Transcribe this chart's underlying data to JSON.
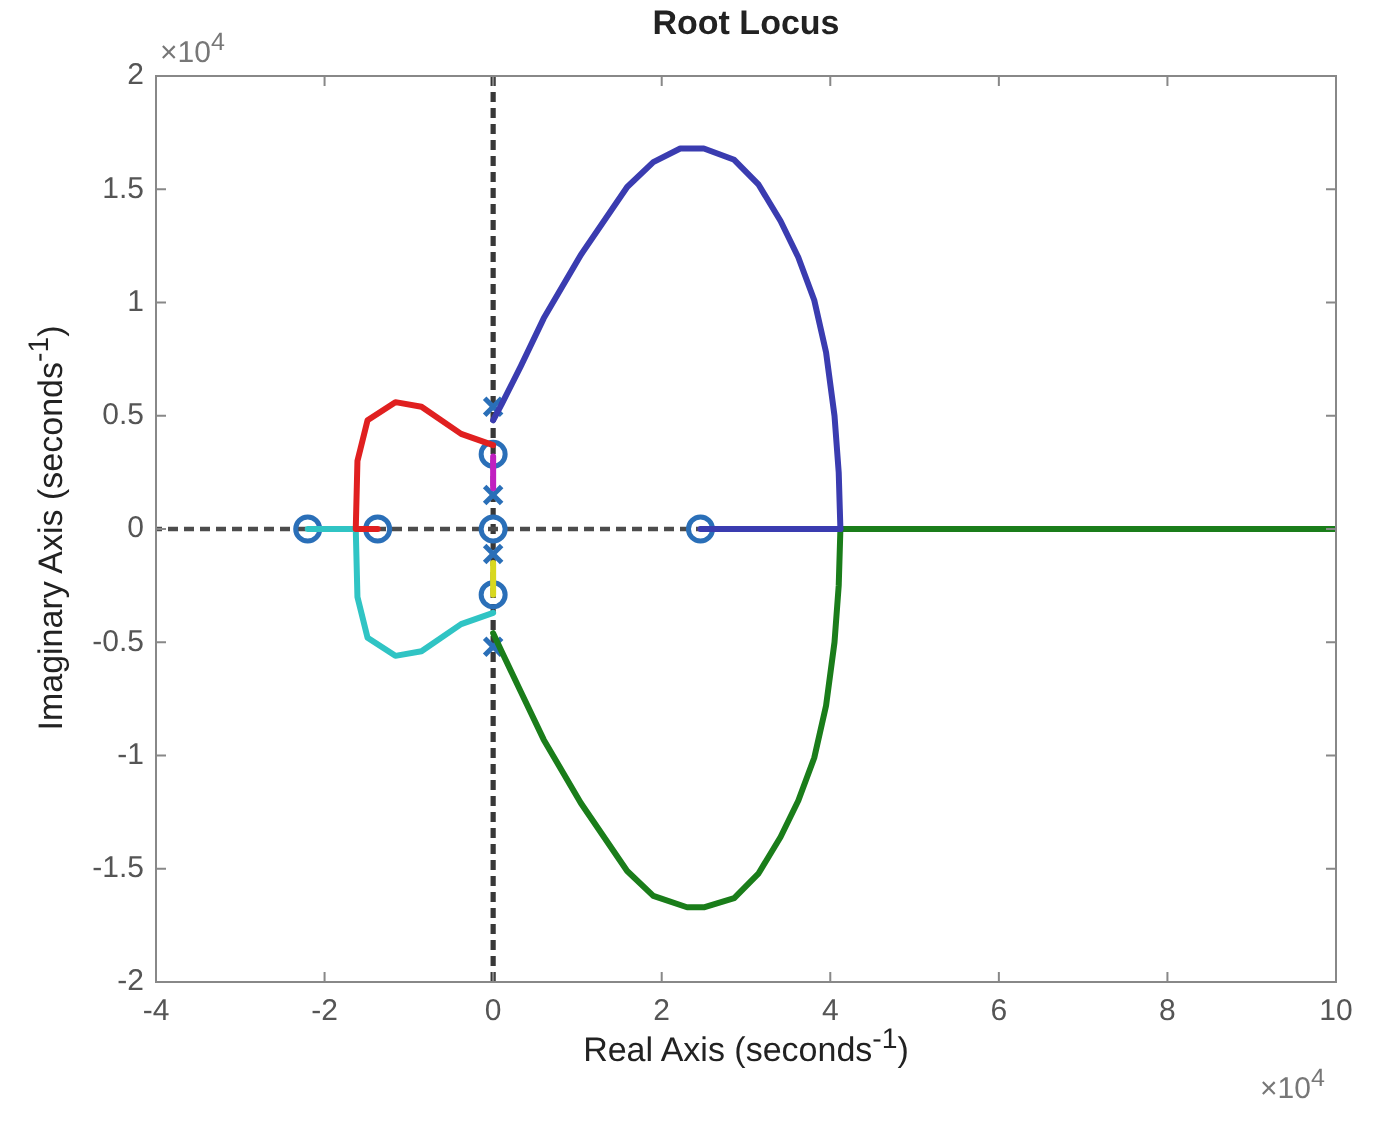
{
  "chart_data": {
    "type": "line",
    "title": "Root Locus",
    "xlabel": "Real Axis (seconds$^{-1}$)",
    "ylabel": "Imaginary Axis (seconds$^{-1}$)",
    "annotations": [
      "×10$^{4}$",
      "×10$^{4}$"
    ],
    "xlim": [
      -4,
      10
    ],
    "xticks": [
      -4,
      -2,
      0,
      2,
      4,
      6,
      8,
      10
    ],
    "ylim": [
      -2,
      2
    ],
    "yticks": [
      -2,
      -1.5,
      -1,
      -0.5,
      0,
      0.5,
      1,
      1.5,
      2
    ],
    "grid": false,
    "legend": false,
    "line_style": "solid",
    "ref_lines": [
      {
        "axis": "x",
        "value": 0,
        "color": "#383838",
        "line_style": "dashed"
      },
      {
        "axis": "y",
        "value": 0,
        "color": "#4c4c4c",
        "line_style": "dashed"
      }
    ],
    "series": [
      {
        "type": "line",
        "color": "#3a3cb0",
        "marker": "none",
        "x": [
          0,
          0.1,
          0.33,
          0.6,
          1.04,
          1.59,
          1.9,
          2.22,
          2.5,
          2.86,
          3.15,
          3.41,
          3.62,
          3.81,
          3.95,
          4.05,
          4.1,
          4.12
        ],
        "values": [
          0.48,
          0.55,
          0.72,
          0.93,
          1.21,
          1.51,
          1.62,
          1.68,
          1.68,
          1.63,
          1.52,
          1.36,
          1.2,
          1.01,
          0.78,
          0.5,
          0.25,
          0
        ]
      },
      {
        "type": "line",
        "color": "#3a3cb0",
        "marker": "none",
        "x": [
          2.46,
          4.12
        ],
        "values": [
          0,
          0
        ]
      },
      {
        "type": "line",
        "color": "#1a7d1a",
        "marker": "none",
        "x": [
          0,
          0.1,
          0.33,
          0.6,
          1.04,
          1.59,
          1.9,
          2.3,
          2.5,
          2.86,
          3.15,
          3.41,
          3.62,
          3.81,
          3.95,
          4.05,
          4.1,
          4.12
        ],
        "values": [
          -0.46,
          -0.54,
          -0.72,
          -0.93,
          -1.21,
          -1.51,
          -1.62,
          -1.67,
          -1.67,
          -1.63,
          -1.52,
          -1.36,
          -1.2,
          -1.01,
          -0.78,
          -0.5,
          -0.25,
          0
        ]
      },
      {
        "type": "line",
        "color": "#1a7d1a",
        "marker": "none",
        "x": [
          4.12,
          10
        ],
        "values": [
          0,
          0
        ]
      },
      {
        "type": "line",
        "color": "#e02020",
        "marker": "none",
        "x": [
          0,
          -0.38,
          -0.85,
          -1.16,
          -1.49,
          -1.61,
          -1.63,
          -1.37
        ],
        "values": [
          0.37,
          0.42,
          0.54,
          0.56,
          0.48,
          0.3,
          0,
          0
        ]
      },
      {
        "type": "line",
        "color": "#30c4c4",
        "marker": "none",
        "x": [
          0,
          -0.38,
          -0.85,
          -1.16,
          -1.49,
          -1.61,
          -1.63,
          -2.2
        ],
        "values": [
          -0.37,
          -0.42,
          -0.54,
          -0.56,
          -0.48,
          -0.3,
          0,
          0
        ]
      },
      {
        "type": "line",
        "color": "#c020c0",
        "marker": "none",
        "x": [
          0,
          0
        ],
        "values": [
          0.32,
          0.18
        ]
      },
      {
        "type": "line",
        "color": "#d8d820",
        "marker": "none",
        "x": [
          0,
          0
        ],
        "values": [
          -0.15,
          -0.29
        ]
      },
      {
        "type": "scatter",
        "color": "#2a6fb8",
        "marker": "cross",
        "x": [
          0,
          0,
          0,
          0
        ],
        "values": [
          0.54,
          0.15,
          -0.11,
          -0.52
        ]
      },
      {
        "type": "scatter",
        "color": "#2a6fb8",
        "marker": "circle",
        "x": [
          0,
          0,
          0,
          -2.2,
          -1.37,
          2.46
        ],
        "values": [
          0.33,
          0,
          -0.29,
          0,
          0,
          0
        ]
      }
    ]
  }
}
